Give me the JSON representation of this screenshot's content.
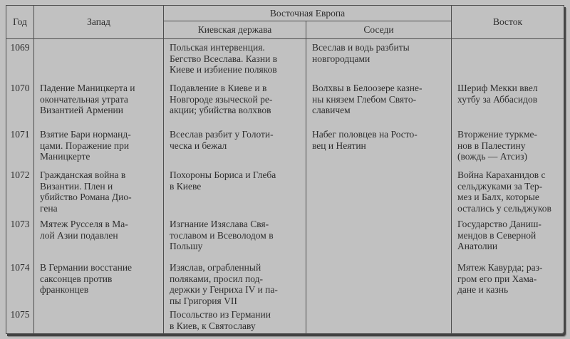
{
  "table": {
    "headers": {
      "year": "Год",
      "west": "Запад",
      "eastern_europe": "Восточная Европа",
      "kievan_state": "Киевская держава",
      "neighbors": "Соседи",
      "east": "Восток"
    },
    "rows": [
      {
        "year": "1069",
        "west": "",
        "kievan": "Польская интервенция.\nБегство Всеслава. Казни в\nКиеве и избиение поляков",
        "neighbors": "Всеслав и водь разбиты\nновгородцами",
        "east": ""
      },
      {
        "year": "1070",
        "west": "Падение Маницкерта и\nокончательная утрата\nВизантией Армении",
        "kievan": "Подавление в Киеве и в\nНовгороде языческой ре-\nакции; убийства волхвов",
        "neighbors": "Волхвы в Белоозере казне-\nны князем Глебом Свято-\nславичем",
        "east": "Шериф Мекки ввел\nхутбу за Аббасидов"
      },
      {
        "year": "1071",
        "west": "Взятие Бари норманд-\nцами. Поражение при\nМаницкерте",
        "kievan": "Всеслав разбит у Голоти-\nческа и бежал",
        "neighbors": "Набег половцев на Росто-\nвец и Неятин",
        "east": "Вторжение туркме-\nнов в Палестину\n(вождь — Атсиз)"
      },
      {
        "year": "1072",
        "west": "Гражданская война в\nВизантии. Плен и\nубийство Романа Дио-\nгена",
        "kievan": "Похороны Бориса и Глеба\nв Киеве",
        "neighbors": "",
        "east": "Война Караханидов с\nсельджуками за Тер-\nмез и Балх, которые\nостались у сельджуков"
      },
      {
        "year": "1073",
        "west": "Мятеж Русселя в Ма-\nлой Азии подавлен",
        "kievan": "Изгнание Изяслава Свя-\nтославом и Всеволодом в\nПольшу",
        "neighbors": "",
        "east": "Государство Даниш-\nмендов в Северной\nАнатолии"
      },
      {
        "year": "1074",
        "west": "В Германии восстание\nсаксонцев против\nфранконцев",
        "kievan": "Изяслав, ограбленный\nполяками, просил под-\nдержки у Генриха IV и па-\nпы Григория VII",
        "neighbors": "",
        "east": "Мятеж Кавурда; раз-\nгром его при Хама-\nдане и казнь"
      },
      {
        "year": "1075",
        "west": "",
        "kievan": "Посольство из Германии\nв Киев, к Святославу",
        "neighbors": "",
        "east": ""
      }
    ]
  },
  "colors": {
    "page_background": "#c1c1c1",
    "text": "#2e2e2e",
    "lines": "#4d4d4d"
  }
}
